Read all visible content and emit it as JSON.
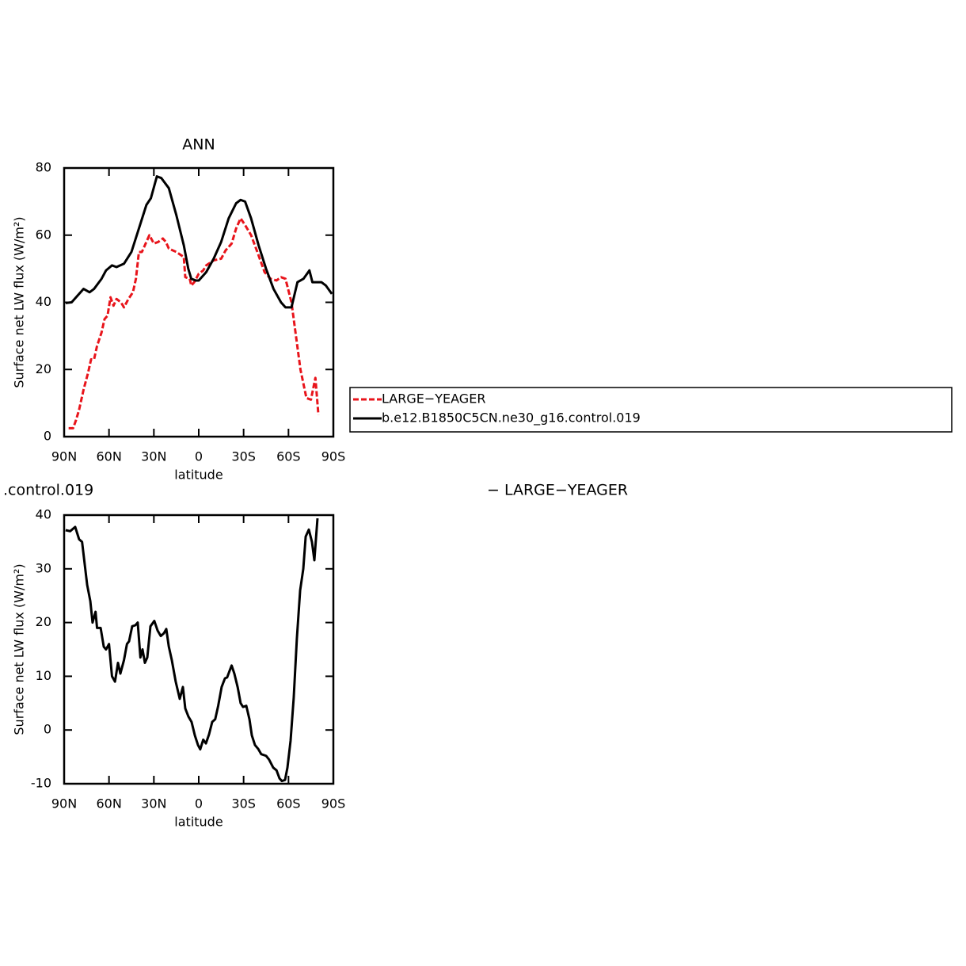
{
  "chart_data": [
    {
      "type": "line",
      "title": "ANN",
      "xlabel": "latitude",
      "ylabel": "Surface net LW flux (W/m²)",
      "xlim": [
        90,
        -90
      ],
      "ylim": [
        0,
        80
      ],
      "xticks": [
        {
          "value": 90,
          "label": "90N"
        },
        {
          "value": 60,
          "label": "60N"
        },
        {
          "value": 30,
          "label": "30N"
        },
        0,
        {
          "value": -30,
          "label": "30S"
        },
        {
          "value": -60,
          "label": "60S"
        },
        {
          "value": -90,
          "label": "90S"
        }
      ],
      "yticks": [
        0,
        20,
        40,
        60,
        80
      ],
      "legend": "right",
      "series": [
        {
          "name": "LARGE−YEAGER",
          "color": "#e8141b",
          "dashed": true,
          "x": [
            87,
            84,
            82,
            80,
            77,
            74,
            72,
            70,
            68,
            65,
            63,
            61,
            59,
            57,
            55,
            52,
            50,
            47,
            44,
            42,
            40,
            38,
            35,
            33,
            30,
            27,
            24,
            22,
            20,
            15,
            10,
            9,
            6,
            5,
            3,
            0,
            -3,
            -5,
            -10,
            -15,
            -18,
            -22,
            -25,
            -28,
            -31,
            -35,
            -40,
            -44,
            -48,
            -52,
            -55,
            -58,
            -62,
            -65,
            -68,
            -72,
            -75,
            -78,
            -80
          ],
          "values": [
            2.5,
            2.5,
            5,
            8,
            14,
            19,
            23,
            23,
            27,
            31,
            35,
            36,
            41.5,
            39,
            41,
            40,
            38.5,
            41,
            43,
            47,
            55,
            55,
            58,
            60,
            57.5,
            58,
            59,
            58,
            56,
            55,
            53.5,
            47.5,
            47,
            45,
            46,
            48.5,
            49.5,
            51,
            52.5,
            53,
            55.5,
            57.5,
            62,
            65,
            63,
            60,
            54,
            49,
            47,
            46.5,
            47.5,
            47,
            40,
            30,
            20,
            11.5,
            11,
            17.5,
            6.5
          ]
        },
        {
          "name": "b.e12.B1850C5CN.ne30_g16.control.019",
          "color": "#000000",
          "dashed": false,
          "x": [
            89,
            85,
            80,
            77,
            73,
            70,
            65,
            62,
            58,
            55,
            50,
            45,
            40,
            35,
            32,
            28,
            25,
            20,
            15,
            10,
            7,
            5,
            2,
            0,
            -5,
            -10,
            -15,
            -20,
            -25,
            -28,
            -31,
            -35,
            -40,
            -45,
            -50,
            -55,
            -58,
            -62,
            -66,
            -70,
            -74,
            -76,
            -82,
            -85,
            -89
          ],
          "values": [
            39.8,
            40,
            42.5,
            44,
            43,
            44,
            47,
            49.5,
            51,
            50.5,
            51.5,
            55,
            62,
            69,
            71,
            77.5,
            77,
            74,
            66,
            57,
            50,
            47,
            46.5,
            46.5,
            49,
            53,
            58,
            65,
            69.5,
            70.5,
            70,
            65,
            57,
            50,
            44,
            40,
            38.5,
            38.5,
            46,
            47,
            49.5,
            46,
            46,
            45,
            42.5
          ]
        }
      ]
    },
    {
      "type": "line",
      "title": ".control.019",
      "subtitle": "− LARGE−YEAGER",
      "xlabel": "latitude",
      "ylabel": "Surface net LW flux (W/m²)",
      "xlim": [
        90,
        -90
      ],
      "ylim": [
        -10,
        40
      ],
      "xticks": [
        {
          "value": 90,
          "label": "90N"
        },
        {
          "value": 60,
          "label": "60N"
        },
        {
          "value": 30,
          "label": "30N"
        },
        0,
        {
          "value": -30,
          "label": "30S"
        },
        {
          "value": -60,
          "label": "60S"
        },
        {
          "value": -90,
          "label": "90S"
        }
      ],
      "yticks": [
        -10,
        0,
        10,
        20,
        30,
        40
      ],
      "series": [
        {
          "color": "#000000",
          "dashed": false,
          "x": [
            89,
            86,
            82.6,
            80,
            78,
            74.6,
            72.5,
            71,
            69,
            68,
            65.6,
            63.5,
            62,
            60,
            58,
            56,
            54,
            52.4,
            50,
            48,
            46.6,
            44.5,
            42.4,
            40.8,
            39,
            37.6,
            36,
            34.4,
            32.3,
            29.7,
            27.5,
            25.4,
            23.3,
            21.7,
            20,
            18,
            15.4,
            12.7,
            10.6,
            9,
            6.9,
            4.8,
            2.6,
            0.5,
            -1,
            -3,
            -4.8,
            -6.9,
            -9,
            -11,
            -13,
            -15.3,
            -17.5,
            -19,
            -20.6,
            -22,
            -23.8,
            -26,
            -28,
            -29.6,
            -31.8,
            -33.9,
            -35.5,
            -37.6,
            -39.7,
            -41.8,
            -45,
            -47,
            -49.8,
            -52,
            -54,
            -55.6,
            -57.7,
            -59.3,
            -61.4,
            -63.5,
            -65.6,
            -67.8,
            -69.9,
            -71.5,
            -73.6,
            -75.7,
            -77.3,
            -79.4
          ],
          "values": [
            37.2,
            37,
            37.8,
            35.5,
            35,
            27,
            24,
            20,
            22,
            19,
            19,
            15.5,
            15,
            16,
            10,
            9,
            12.5,
            10.5,
            13,
            16,
            16.5,
            19.3,
            19.5,
            20,
            13.5,
            15,
            12.5,
            13.5,
            19.3,
            20.3,
            18.5,
            17.5,
            18,
            18.8,
            15.5,
            13,
            9,
            5.8,
            8,
            4,
            2.5,
            1.5,
            -1,
            -2.8,
            -3.6,
            -1.8,
            -2.5,
            -0.8,
            1.5,
            2,
            4.5,
            8,
            9.6,
            9.8,
            11,
            12,
            10.5,
            8,
            5,
            4.3,
            4.5,
            2,
            -1,
            -2.8,
            -3.5,
            -4.5,
            -4.8,
            -5.5,
            -7,
            -7.5,
            -9,
            -9.5,
            -9.3,
            -7,
            -2,
            6,
            17,
            26,
            30,
            36,
            37.3,
            35,
            31.6,
            39.4
          ]
        }
      ]
    }
  ]
}
